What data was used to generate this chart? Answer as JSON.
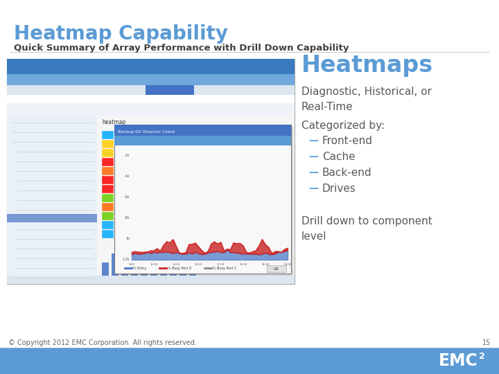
{
  "title": "Heatmap Capability",
  "subtitle": "Quick Summary of Array Performance with Drill Down Capability",
  "title_color": "#5B9BD5",
  "subtitle_color": "#404040",
  "heading": "Heatmaps",
  "heading_color": "#5B9BD5",
  "bullet1": "Diagnostic, Historical, or\nReal-Time",
  "bullet2_header": "Categorized by:",
  "bullet2_items": [
    "Front-end",
    "Cache",
    "Back-end",
    "Drives"
  ],
  "bullet3": "Drill down to component\nlevel",
  "bullet_color": "#595959",
  "dash_color": "#5B9BD5",
  "footer_bg": "#5B9BD5",
  "footer_text": "© Copyright 2012 EMC Corporation. All rights reserved.",
  "footer_page": "15",
  "footer_text_color": "#ffffff",
  "emc_text": "EMC",
  "emc_super": "2",
  "bg_color": "#ffffff",
  "screenshot_bg": "#f0f0f0",
  "nav_bar_color": "#5B9BD5",
  "sidebar_color": "#e0e8f0",
  "heatmap_colors": [
    "#ff0000",
    "#ff6600",
    "#ffcc00",
    "#66cc00",
    "#00aaff",
    "#0055cc"
  ],
  "chart_blue": "#4472C4",
  "chart_red": "#cc2222"
}
